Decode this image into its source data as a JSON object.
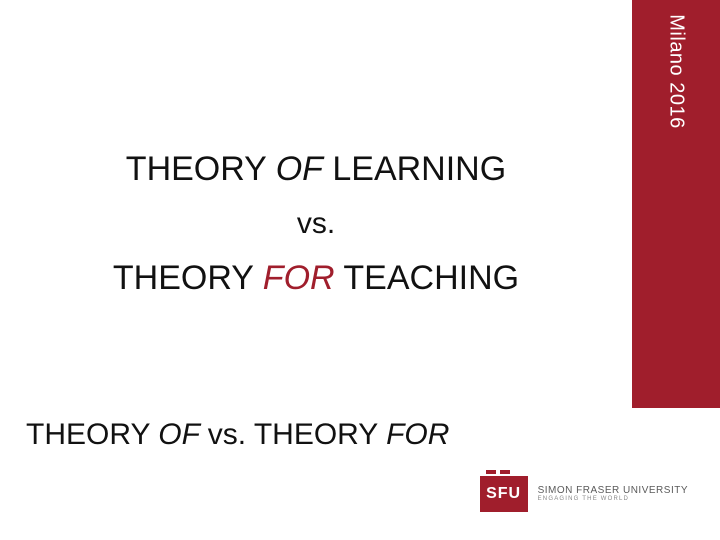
{
  "sidebar": {
    "label": "Milano 2016",
    "bg": "#a01e2c"
  },
  "body": {
    "line1_pre": "THEORY ",
    "line1_em": "OF",
    "line1_post": " LEARNING",
    "vs": "vs.",
    "line2_pre": "THEORY ",
    "line2_em": "FOR",
    "line2_post": " TEACHING"
  },
  "title": {
    "t1": "THEORY ",
    "of": "OF ",
    "mid": " vs. THEORY ",
    "for": "FOR"
  },
  "footer": {
    "logo_text": "SFU",
    "university": "SIMON FRASER UNIVERSITY",
    "tagline": "ENGAGING THE WORLD"
  }
}
